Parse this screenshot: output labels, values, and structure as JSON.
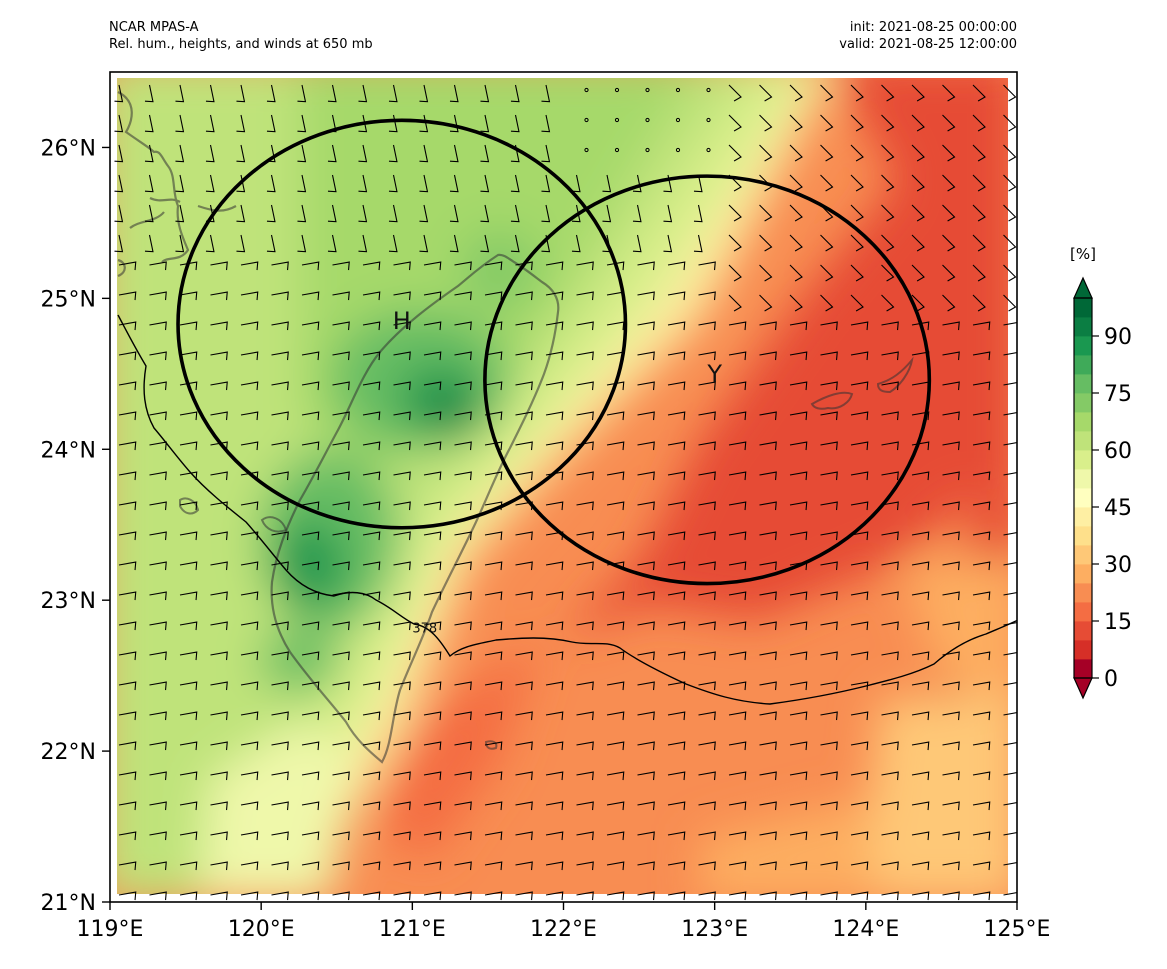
{
  "header": {
    "left_line1": "NCAR MPAS-A",
    "left_line2": "Rel. hum., heights, and winds at 650 mb",
    "right_line1": "init: 2021-08-25 00:00:00",
    "right_line2": "valid: 2021-08-25 12:00:00"
  },
  "map": {
    "lon_range": [
      119,
      125
    ],
    "lat_range": [
      21,
      26.5
    ],
    "lon_ticks": [
      "119°E",
      "120°E",
      "121°E",
      "122°E",
      "123°E",
      "124°E",
      "125°E"
    ],
    "lat_ticks": [
      "21°N",
      "22°N",
      "23°N",
      "24°N",
      "25°N",
      "26°N"
    ],
    "markers": [
      {
        "label": "H",
        "lon": 120.93,
        "lat": 24.85
      },
      {
        "label": "Y",
        "lon": 123.0,
        "lat": 24.5
      }
    ],
    "circles": [
      {
        "name": "circle-h",
        "lon": 120.93,
        "lat": 24.83,
        "r_lon": 1.48,
        "r_lat": 1.35
      },
      {
        "name": "circle-y",
        "lon": 122.95,
        "lat": 24.46,
        "r_lon": 1.47,
        "r_lat": 1.35
      }
    ],
    "contour_label": "378",
    "contour_label_pos": {
      "lon": 121.0,
      "lat": 22.82
    }
  },
  "colorbar": {
    "unit": "[%]",
    "min": 0,
    "max": 100,
    "step": 5,
    "tick_labels": [
      "0",
      "15",
      "30",
      "45",
      "60",
      "75",
      "90"
    ],
    "tick_values": [
      0,
      15,
      30,
      45,
      60,
      75,
      90
    ],
    "extend": "both",
    "colors": [
      "#a50026",
      "#d62f27",
      "#e64c35",
      "#f46d43",
      "#f88d52",
      "#fdae61",
      "#fec877",
      "#fee08b",
      "#feefa3",
      "#ffffbf",
      "#eff8aa",
      "#d9ef8b",
      "#bfe37a",
      "#a6d96a",
      "#84ca66",
      "#66bd63",
      "#3faa59",
      "#1a9850",
      "#0b7e43",
      "#006837"
    ]
  }
}
